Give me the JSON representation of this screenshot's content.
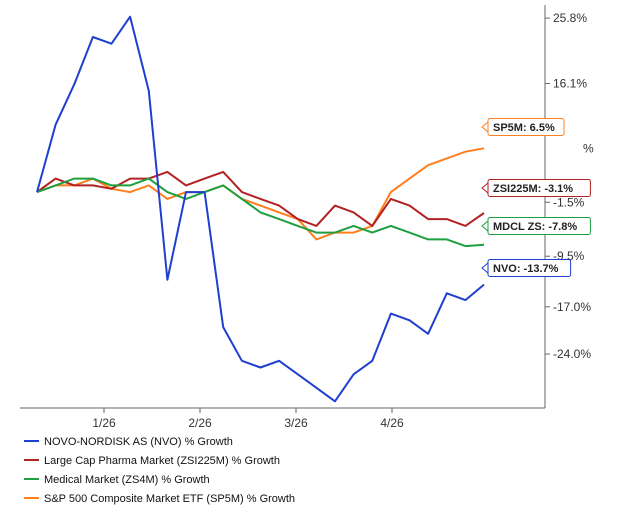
{
  "chart_data": {
    "type": "line",
    "title": "",
    "xlabel": "",
    "ylabel": "",
    "x_ticks": [
      "1/26",
      "2/26",
      "3/26",
      "4/26"
    ],
    "y_ticks": [
      "25.8%",
      "16.1%",
      "-1.5%",
      "-9.5%",
      "-17.0%",
      "-24.0%"
    ],
    "y_tick_values": [
      25.8,
      16.1,
      -1.5,
      -9.5,
      -17.0,
      -24.0
    ],
    "ylim": [
      -32,
      27
    ],
    "grid": false,
    "legend_position": "bottom",
    "x": [
      0,
      0.7,
      1.4,
      2.1,
      2.8,
      3.5,
      4.2,
      4.9,
      5.6,
      6.3,
      7.0,
      7.7,
      8.4,
      9.1,
      9.8,
      10.5,
      11.2,
      11.9,
      12.6,
      13.3,
      14.0,
      14.7,
      15.4,
      16.1,
      16.8
    ],
    "series": [
      {
        "name": "NOVO-NORDISK AS (NVO) % Growth",
        "color": "#1f3fcf",
        "values": [
          0,
          10,
          16,
          23,
          22,
          26,
          15,
          -13,
          0,
          0,
          -20,
          -25,
          -26,
          -25,
          -27,
          -29,
          -31,
          -27,
          -25,
          -18,
          -19,
          -21,
          -15,
          -16,
          -13.7
        ]
      },
      {
        "name": "Large Cap Pharma Market (ZSI225M) % Growth",
        "color": "#b22222",
        "values": [
          0,
          2,
          1,
          1,
          0.5,
          2,
          2,
          3,
          1,
          2,
          3,
          0,
          -1,
          -2,
          -4,
          -5,
          -2,
          -3,
          -5,
          -1,
          -2,
          -4,
          -4,
          -5,
          -3.1
        ]
      },
      {
        "name": "Medical Market (ZS4M) % Growth",
        "color": "#1f9f3f",
        "values": [
          0,
          1,
          2,
          2,
          1,
          1,
          2,
          0,
          -1,
          0,
          1,
          -1,
          -3,
          -4,
          -5,
          -6,
          -6,
          -5,
          -6,
          -5,
          -6,
          -7,
          -7,
          -8,
          -7.8
        ]
      },
      {
        "name": "S&P 500 Composite Market ETF (SP5M) % Growth",
        "color": "#ff7f1e",
        "values": [
          0,
          1,
          1,
          2,
          0.5,
          0,
          1,
          -1,
          0,
          0,
          1,
          -1,
          -2,
          -3,
          -4,
          -7,
          -6,
          -6,
          -5,
          0,
          2,
          4,
          5,
          6,
          6.5
        ]
      }
    ],
    "callouts": [
      {
        "text": "SP5M: 6.5%",
        "color": "#ff7f1e",
        "value": 6.5
      },
      {
        "text": "ZSI225M: -3.1%",
        "color": "#b22222",
        "value": -3.1
      },
      {
        "text": "MDCL ZS: -7.8%",
        "color": "#1f9f3f",
        "value": -7.8
      },
      {
        "text": "NVO: -13.7%",
        "color": "#1f3fcf",
        "value": -13.7
      }
    ],
    "partial_labels": [
      "%"
    ]
  }
}
